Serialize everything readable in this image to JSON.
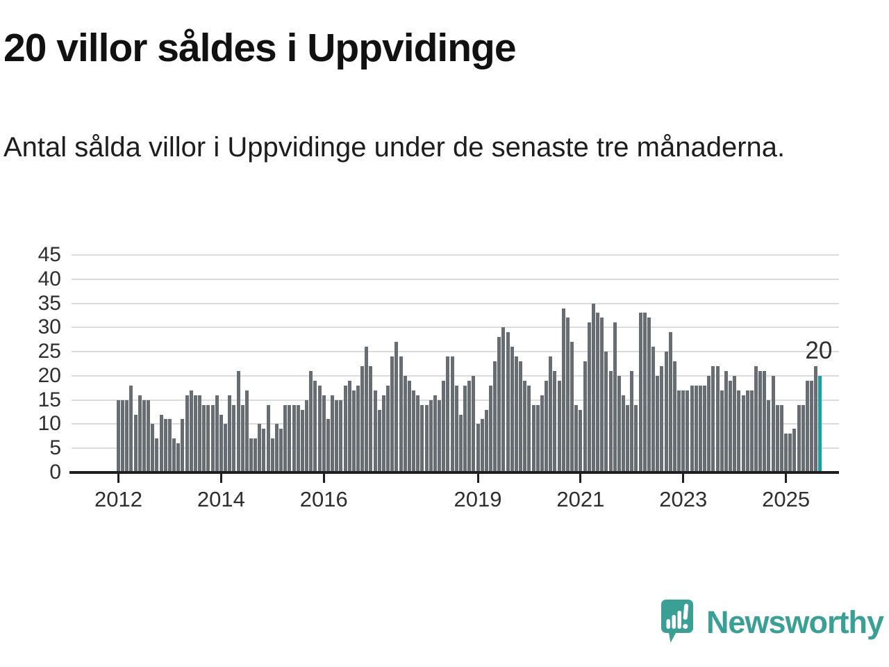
{
  "title": "20 villor såldes i Uppvidinge",
  "subtitle": "Antal sålda villor i Uppvidinge under de senaste tre månaderna.",
  "branding": {
    "name": "Newsworthy",
    "icon": "newsworthy-speech-bubble-chart-icon"
  },
  "colors": {
    "bar": "#686c73",
    "highlight": "#14a3a0",
    "grid": "#dcdcdc",
    "axis": "#1f1f1f",
    "tick_text": "#2e2e2e",
    "title": "#111111",
    "subtitle": "#1d1d1d",
    "annotation": "#2e2e2e",
    "brand": "#3aa096"
  },
  "chart_data": {
    "type": "bar",
    "title": "20 villor såldes i Uppvidinge",
    "subtitle": "Antal sålda villor i Uppvidinge under de senaste tre månaderna.",
    "unit": "sålda villor (rullande 3 månader)",
    "x_start": "2012-01",
    "x_end": "2025-09",
    "ylim": [
      0,
      45
    ],
    "grid": true,
    "legend": "none",
    "y_ticks": [
      0,
      5,
      10,
      15,
      20,
      25,
      30,
      35,
      40,
      45
    ],
    "x_ticks": [
      {
        "label": "2012",
        "month_index": 0
      },
      {
        "label": "2014",
        "month_index": 24
      },
      {
        "label": "2016",
        "month_index": 48
      },
      {
        "label": "2019",
        "month_index": 84
      },
      {
        "label": "2021",
        "month_index": 108
      },
      {
        "label": "2023",
        "month_index": 132
      },
      {
        "label": "2025",
        "month_index": 156
      }
    ],
    "values": [
      15,
      15,
      15,
      18,
      12,
      16,
      15,
      15,
      10,
      7,
      12,
      11,
      11,
      7,
      6,
      11,
      16,
      17,
      16,
      16,
      14,
      14,
      14,
      16,
      12,
      10,
      16,
      14,
      21,
      14,
      17,
      7,
      7,
      10,
      9,
      14,
      7,
      10,
      9,
      14,
      14,
      14,
      14,
      13,
      15,
      21,
      19,
      18,
      16,
      11,
      16,
      15,
      15,
      18,
      19,
      17,
      18,
      22,
      26,
      22,
      17,
      13,
      16,
      18,
      24,
      27,
      24,
      20,
      19,
      17,
      16,
      14,
      14,
      15,
      16,
      15,
      19,
      24,
      24,
      18,
      12,
      18,
      19,
      20,
      10,
      11,
      13,
      18,
      23,
      28,
      30,
      29,
      26,
      24,
      23,
      19,
      18,
      14,
      14,
      16,
      19,
      24,
      21,
      19,
      34,
      32,
      27,
      14,
      13,
      23,
      31,
      35,
      33,
      32,
      25,
      21,
      31,
      20,
      16,
      14,
      21,
      14,
      33,
      33,
      32,
      26,
      20,
      22,
      25,
      29,
      23,
      17,
      17,
      17,
      18,
      18,
      18,
      18,
      20,
      22,
      22,
      17,
      21,
      19,
      20,
      17,
      16,
      17,
      17,
      22,
      21,
      21,
      15,
      20,
      14,
      14,
      8,
      8,
      9,
      14,
      14,
      19,
      19,
      22,
      20
    ],
    "highlight_index": 164,
    "highlight_value_label": "20"
  }
}
